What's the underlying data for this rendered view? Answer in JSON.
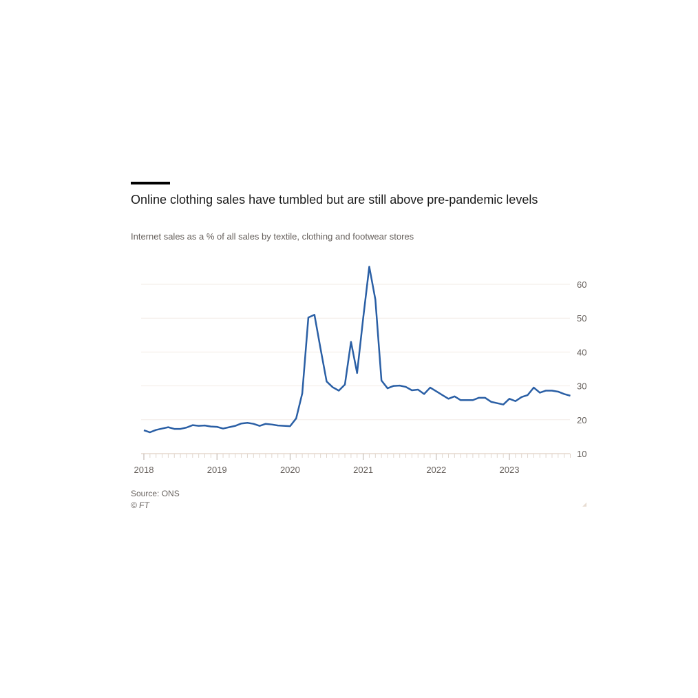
{
  "chart_data": {
    "type": "line",
    "title": "Online clothing sales have tumbled but are still above pre-pandemic levels",
    "subtitle": "Internet sales as a % of all sales by textile, clothing and footwear stores",
    "xlabel": "",
    "ylabel": "",
    "x_start": "2018-01",
    "frequency": "monthly",
    "x_ticks": [
      "2018",
      "2019",
      "2020",
      "2021",
      "2022",
      "2023"
    ],
    "y_ticks": [
      10,
      20,
      30,
      40,
      50,
      60
    ],
    "ylim": [
      10,
      66
    ],
    "grid": true,
    "series": [
      {
        "name": "Internet sales share (%)",
        "color": "#2a5fa5",
        "values": [
          16.9,
          16.3,
          17.0,
          17.4,
          17.8,
          17.3,
          17.3,
          17.7,
          18.4,
          18.2,
          18.3,
          18.0,
          17.9,
          17.4,
          17.8,
          18.2,
          18.9,
          19.1,
          18.8,
          18.2,
          18.8,
          18.6,
          18.3,
          18.2,
          18.1,
          20.4,
          27.8,
          50.2,
          51.0,
          41.0,
          31.3,
          29.6,
          28.6,
          30.4,
          43.0,
          33.8,
          50.0,
          65.2,
          55.5,
          31.6,
          29.3,
          30.0,
          30.1,
          29.7,
          28.7,
          28.9,
          27.6,
          29.5,
          28.4,
          27.3,
          26.2,
          26.9,
          25.8,
          25.8,
          25.8,
          26.5,
          26.5,
          25.3,
          24.9,
          24.5,
          26.2,
          25.5,
          26.7,
          27.3,
          29.5,
          28.0,
          28.6,
          28.6,
          28.3,
          27.6,
          27.1
        ]
      }
    ],
    "source": "Source: ONS",
    "credit": "© FT"
  }
}
